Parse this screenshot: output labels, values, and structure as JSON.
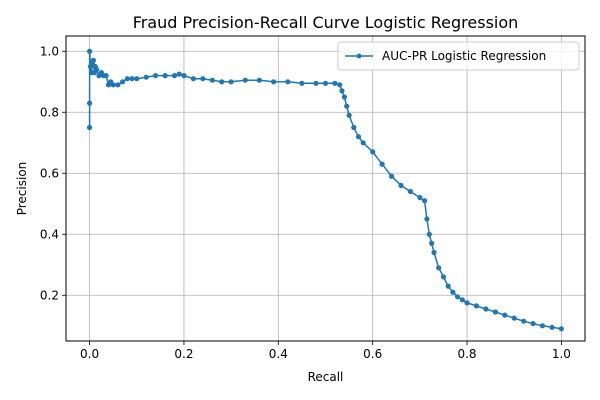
{
  "chart_data": {
    "type": "line",
    "title": "Fraud Precision-Recall Curve Logistic Regression",
    "xlabel": "Recall",
    "ylabel": "Precision",
    "xlim": [
      -0.05,
      1.05
    ],
    "ylim": [
      0.05,
      1.05
    ],
    "xticks": [
      0.0,
      0.2,
      0.4,
      0.6,
      0.8,
      1.0
    ],
    "xtick_labels": [
      "0.0",
      "0.2",
      "0.4",
      "0.6",
      "0.8",
      "1.0"
    ],
    "yticks": [
      0.2,
      0.4,
      0.6,
      0.8,
      1.0
    ],
    "ytick_labels": [
      "0.2",
      "0.4",
      "0.6",
      "0.8",
      "1.0"
    ],
    "grid": true,
    "legend_position": "upper right",
    "colors": {
      "series": "#1f77b4",
      "grid": "#b0b0b0",
      "axes": "#000000"
    },
    "series": [
      {
        "name": "AUC-PR Logistic Regression",
        "marker": "dot",
        "x": [
          0.0,
          0.0,
          0.0,
          0.002,
          0.004,
          0.006,
          0.008,
          0.01,
          0.012,
          0.015,
          0.02,
          0.025,
          0.03,
          0.035,
          0.04,
          0.045,
          0.05,
          0.06,
          0.07,
          0.08,
          0.09,
          0.1,
          0.12,
          0.14,
          0.16,
          0.18,
          0.19,
          0.2,
          0.22,
          0.24,
          0.26,
          0.28,
          0.3,
          0.33,
          0.36,
          0.39,
          0.42,
          0.45,
          0.48,
          0.5,
          0.52,
          0.53,
          0.535,
          0.54,
          0.545,
          0.55,
          0.56,
          0.57,
          0.58,
          0.6,
          0.62,
          0.64,
          0.66,
          0.68,
          0.7,
          0.71,
          0.715,
          0.72,
          0.725,
          0.73,
          0.74,
          0.75,
          0.76,
          0.77,
          0.78,
          0.79,
          0.8,
          0.82,
          0.84,
          0.86,
          0.88,
          0.9,
          0.92,
          0.94,
          0.96,
          0.98,
          1.0
        ],
        "y": [
          0.75,
          0.83,
          1.0,
          0.95,
          0.93,
          0.96,
          0.97,
          0.93,
          0.95,
          0.94,
          0.92,
          0.93,
          0.92,
          0.92,
          0.89,
          0.9,
          0.89,
          0.89,
          0.9,
          0.91,
          0.91,
          0.91,
          0.915,
          0.92,
          0.92,
          0.92,
          0.925,
          0.92,
          0.91,
          0.91,
          0.905,
          0.9,
          0.9,
          0.905,
          0.905,
          0.9,
          0.9,
          0.895,
          0.895,
          0.895,
          0.895,
          0.89,
          0.87,
          0.85,
          0.82,
          0.79,
          0.75,
          0.72,
          0.7,
          0.67,
          0.63,
          0.59,
          0.56,
          0.54,
          0.52,
          0.51,
          0.45,
          0.4,
          0.37,
          0.34,
          0.29,
          0.26,
          0.23,
          0.21,
          0.195,
          0.185,
          0.175,
          0.165,
          0.155,
          0.145,
          0.135,
          0.125,
          0.115,
          0.107,
          0.1,
          0.095,
          0.09
        ]
      }
    ]
  }
}
